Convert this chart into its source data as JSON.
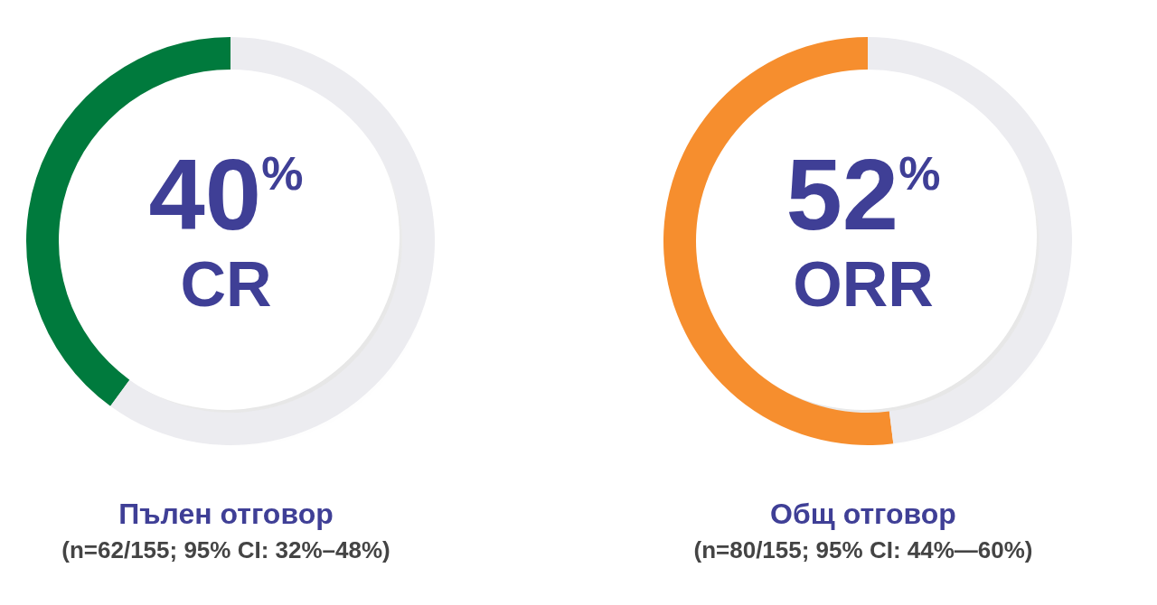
{
  "chart_data": [
    {
      "type": "donut",
      "title": "Пълен отговор",
      "subtitle": "(n=62/155; 95% CI: 32%–48%)",
      "categories": [
        "CR",
        null
      ],
      "values": [
        40,
        60
      ],
      "colors": [
        "#007a3d",
        "#ececf0"
      ],
      "value_labels": [
        "40$^{%}$",
        null
      ],
      "legend": false
    },
    {
      "type": "donut",
      "title": "Общ отговор",
      "subtitle": "(n=80/155; 95% CI: 44%—60%)",
      "categories": [
        "ORR",
        null
      ],
      "values": [
        52,
        48
      ],
      "colors": [
        "#f68e2e",
        "#ececf0"
      ],
      "value_labels": [
        "52$^{%}$",
        null
      ],
      "legend": false
    }
  ]
}
